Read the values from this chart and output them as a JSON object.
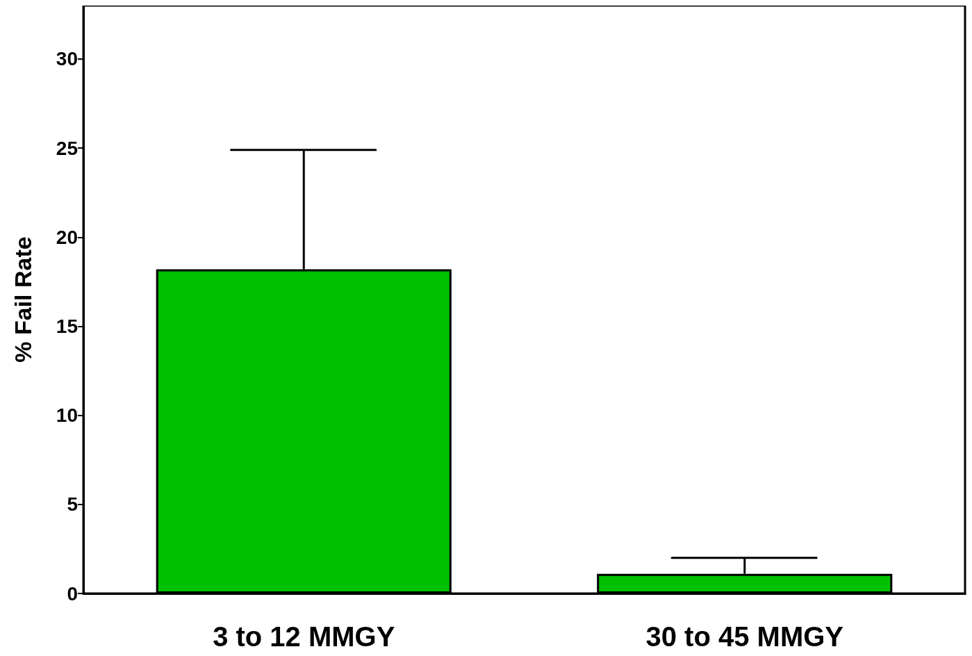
{
  "chart_data": {
    "type": "bar",
    "categories": [
      "3 to 12 MMGY",
      "30 to 45 MMGY"
    ],
    "values": [
      18.2,
      1.1
    ],
    "errors": [
      [
        18.2,
        24.9
      ],
      [
        1.1,
        2.0
      ]
    ],
    "color": "#00c000",
    "ylabel": "% Fail Rate",
    "ylim": [
      0,
      33
    ],
    "yticks": [
      0,
      5,
      10,
      15,
      20,
      25,
      30
    ],
    "grid": false
  }
}
